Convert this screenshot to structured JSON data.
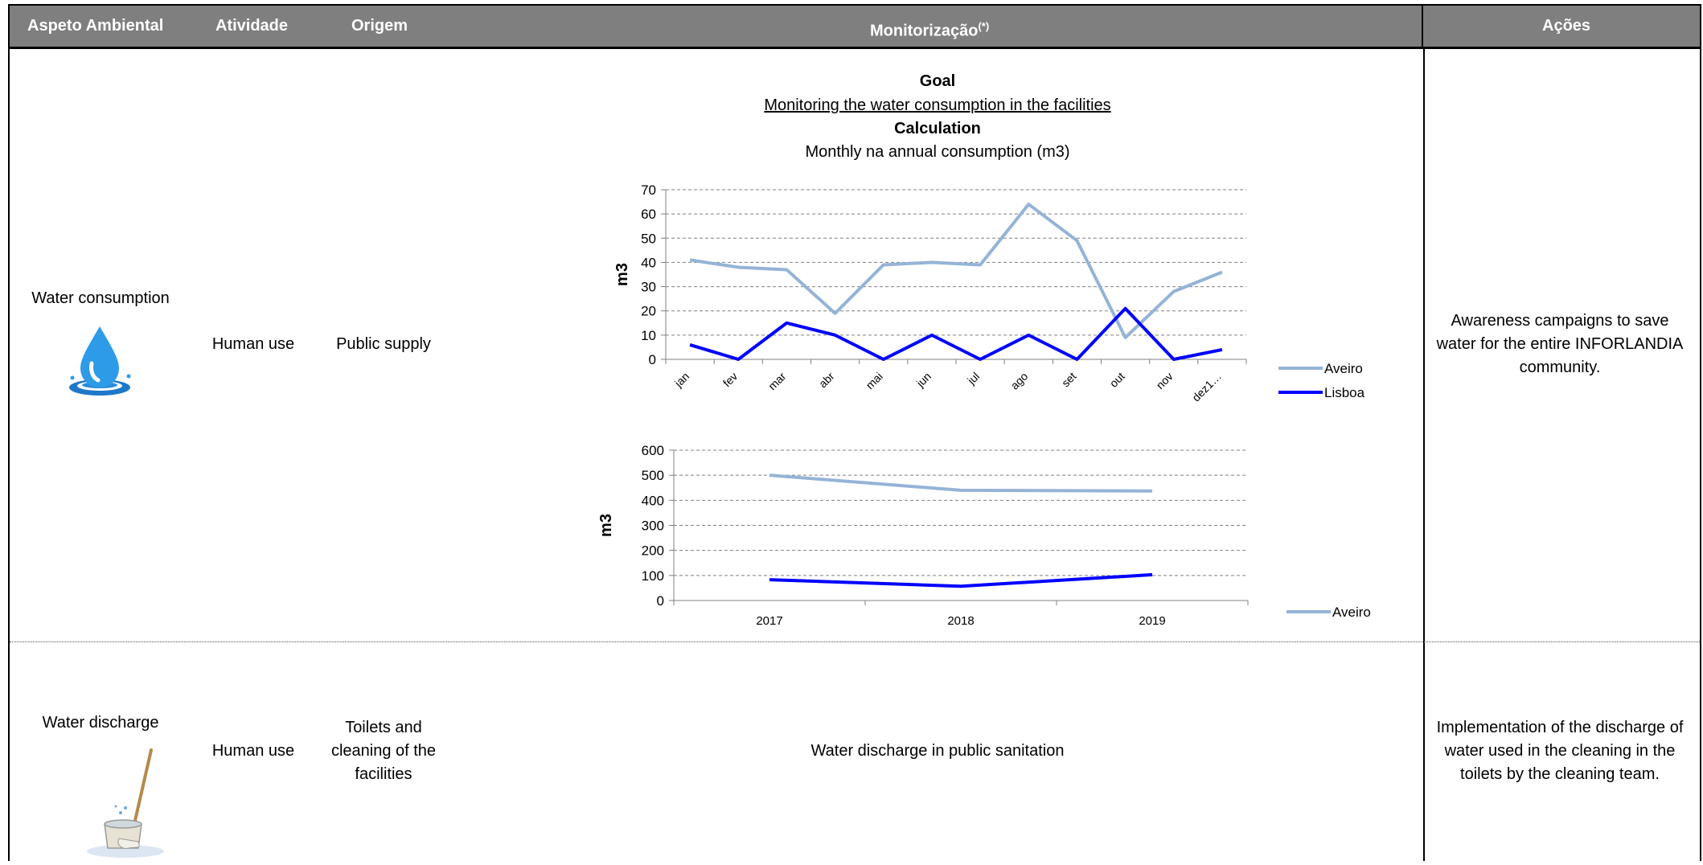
{
  "header": {
    "aspeto": "Aspeto Ambiental",
    "atividade": "Atividade",
    "origem": "Origem",
    "monitorizacao": "Monitorização",
    "monitorizacao_sup": "(*)",
    "acoes": "Ações"
  },
  "rows": [
    {
      "aspeto": "Water consumption",
      "atividade": "Human use",
      "origem": "Public supply",
      "monitor": {
        "goal_label": "Goal",
        "goal_text": "Monitoring the water consumption in the facilities",
        "calc_label": "Calculation",
        "calc_text": "Monthly na annual consumption (m3)"
      },
      "acoes": "Awareness campaigns to save water for the entire INFORLANDIA community."
    },
    {
      "aspeto": "Water discharge",
      "atividade": "Human use",
      "origem": "Toilets and cleaning of the facilities",
      "monitor_text": "Water discharge in public sanitation",
      "acoes": "Implementation of the discharge of water used in the cleaning in the toilets by the cleaning team."
    }
  ],
  "icons": {
    "row1": "water-drop-icon",
    "row2": "mop-bucket-icon"
  },
  "colors": {
    "header_bg": "#7f7f7f",
    "aveiro": "#95b3d7",
    "lisboa": "#0000ff"
  },
  "chart_data": [
    {
      "type": "line",
      "categories": [
        "jan",
        "fev",
        "mar",
        "abr",
        "mai",
        "jun",
        "jul",
        "ago",
        "set",
        "out",
        "nov",
        "dez1…"
      ],
      "series": [
        {
          "name": "Aveiro",
          "values": [
            41,
            38,
            37,
            19,
            39,
            40,
            39,
            64,
            49,
            9,
            28,
            36
          ]
        },
        {
          "name": "Lisboa",
          "values": [
            6,
            0,
            15,
            10,
            0,
            10,
            0,
            10,
            0,
            21,
            0,
            4
          ]
        }
      ],
      "yticks": [
        "0",
        "10",
        "20",
        "30",
        "40",
        "50",
        "60",
        "70"
      ],
      "ylabel": "m3",
      "ylim": [
        0,
        70
      ],
      "grid": true,
      "legend": "right"
    },
    {
      "type": "line",
      "categories": [
        "2017",
        "2018",
        "2019"
      ],
      "series": [
        {
          "name": "Aveiro",
          "values": [
            500,
            440,
            437
          ]
        },
        {
          "values": [
            83,
            57,
            103
          ]
        }
      ],
      "yticks": [
        "0",
        "100",
        "200",
        "300",
        "400",
        "500",
        "600"
      ],
      "ylabel": "m3",
      "ylim": [
        0,
        600
      ],
      "grid": true,
      "legend": "right"
    }
  ]
}
